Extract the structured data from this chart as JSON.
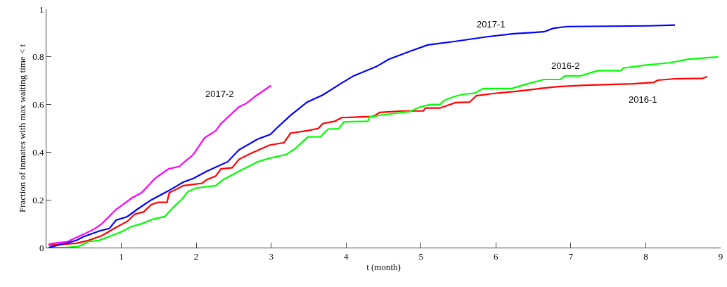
{
  "chart_data": {
    "type": "line",
    "xlabel": "t (month)",
    "ylabel": "Fraction of inmates with max waiting time < t",
    "xlim": [
      0,
      9
    ],
    "ylim": [
      0,
      1
    ],
    "xticks": [
      1,
      2,
      3,
      4,
      5,
      6,
      7,
      8,
      9
    ],
    "yticks": [
      0,
      0.2,
      0.4,
      0.6,
      0.8,
      1
    ],
    "legend": false,
    "marker": "none",
    "line_style": "solid",
    "series": [
      {
        "name": "2016-1",
        "color": "#ff0000",
        "x": [
          0.03,
          0.4,
          0.56,
          0.74,
          0.93,
          1.08,
          1.18,
          1.3,
          1.4,
          1.49,
          1.61,
          1.64,
          1.83,
          2.08,
          2.14,
          2.26,
          2.33,
          2.48,
          2.57,
          2.73,
          2.98,
          3.17,
          3.26,
          3.48,
          3.63,
          3.69,
          3.85,
          3.94,
          4.34,
          4.38,
          4.45,
          4.75,
          5.03,
          5.06,
          5.25,
          5.46,
          5.65,
          5.74,
          5.96,
          6.27,
          6.58,
          6.83,
          7.2,
          7.83,
          8.11,
          8.16,
          8.39,
          8.76,
          8.82
        ],
        "values": [
          0.01,
          0.018,
          0.03,
          0.05,
          0.085,
          0.11,
          0.14,
          0.15,
          0.18,
          0.19,
          0.19,
          0.23,
          0.26,
          0.27,
          0.285,
          0.3,
          0.33,
          0.335,
          0.37,
          0.395,
          0.43,
          0.44,
          0.48,
          0.49,
          0.5,
          0.52,
          0.53,
          0.545,
          0.55,
          0.553,
          0.567,
          0.573,
          0.573,
          0.585,
          0.585,
          0.608,
          0.61,
          0.637,
          0.646,
          0.655,
          0.667,
          0.675,
          0.681,
          0.687,
          0.693,
          0.702,
          0.708,
          0.71,
          0.717
        ]
      },
      {
        "name": "2016-2",
        "color": "#00ff00",
        "x": [
          0.03,
          0.25,
          0.43,
          0.56,
          0.7,
          0.87,
          0.99,
          1.13,
          1.27,
          1.43,
          1.58,
          1.68,
          1.8,
          1.89,
          2.0,
          2.26,
          2.36,
          2.57,
          2.82,
          2.98,
          3.2,
          3.32,
          3.49,
          3.66,
          3.76,
          3.9,
          3.97,
          4.29,
          4.31,
          4.47,
          4.85,
          4.97,
          5.12,
          5.25,
          5.31,
          5.43,
          5.56,
          5.71,
          5.83,
          6.21,
          6.39,
          6.64,
          6.86,
          6.92,
          7.13,
          7.36,
          7.67,
          7.7,
          8.01,
          8.32,
          8.57,
          8.97
        ],
        "values": [
          0.0,
          0.0,
          0.005,
          0.025,
          0.03,
          0.05,
          0.065,
          0.088,
          0.1,
          0.12,
          0.13,
          0.165,
          0.2,
          0.235,
          0.25,
          0.26,
          0.285,
          0.32,
          0.36,
          0.375,
          0.39,
          0.415,
          0.464,
          0.465,
          0.497,
          0.498,
          0.527,
          0.53,
          0.547,
          0.556,
          0.57,
          0.588,
          0.6,
          0.6,
          0.617,
          0.632,
          0.643,
          0.647,
          0.667,
          0.667,
          0.684,
          0.705,
          0.705,
          0.72,
          0.72,
          0.742,
          0.742,
          0.753,
          0.766,
          0.775,
          0.79,
          0.8
        ]
      },
      {
        "name": "2017-1",
        "color": "#0000ff",
        "x": [
          0.03,
          0.4,
          0.49,
          0.71,
          0.84,
          0.93,
          1.08,
          1.21,
          1.4,
          1.61,
          1.83,
          1.96,
          2.14,
          2.42,
          2.57,
          2.82,
          2.99,
          3.07,
          3.26,
          3.48,
          3.69,
          3.94,
          4.1,
          4.41,
          4.57,
          4.87,
          5.09,
          5.46,
          5.9,
          6.24,
          6.64,
          6.77,
          6.95,
          8.04,
          8.39
        ],
        "values": [
          0.0,
          0.03,
          0.045,
          0.07,
          0.08,
          0.115,
          0.13,
          0.16,
          0.2,
          0.235,
          0.275,
          0.29,
          0.32,
          0.36,
          0.41,
          0.455,
          0.475,
          0.5,
          0.555,
          0.61,
          0.64,
          0.69,
          0.72,
          0.76,
          0.79,
          0.825,
          0.85,
          0.865,
          0.885,
          0.897,
          0.905,
          0.92,
          0.927,
          0.93,
          0.933
        ]
      },
      {
        "name": "2017-2",
        "color": "#ff00ff",
        "x": [
          0.03,
          0.28,
          0.49,
          0.65,
          0.74,
          0.93,
          1.15,
          1.27,
          1.45,
          1.63,
          1.77,
          1.96,
          2.11,
          2.26,
          2.33,
          2.57,
          2.67,
          2.79,
          3.0
        ],
        "values": [
          0.015,
          0.025,
          0.055,
          0.08,
          0.1,
          0.16,
          0.21,
          0.23,
          0.29,
          0.33,
          0.34,
          0.39,
          0.46,
          0.49,
          0.52,
          0.59,
          0.605,
          0.635,
          0.68
        ]
      }
    ]
  }
}
